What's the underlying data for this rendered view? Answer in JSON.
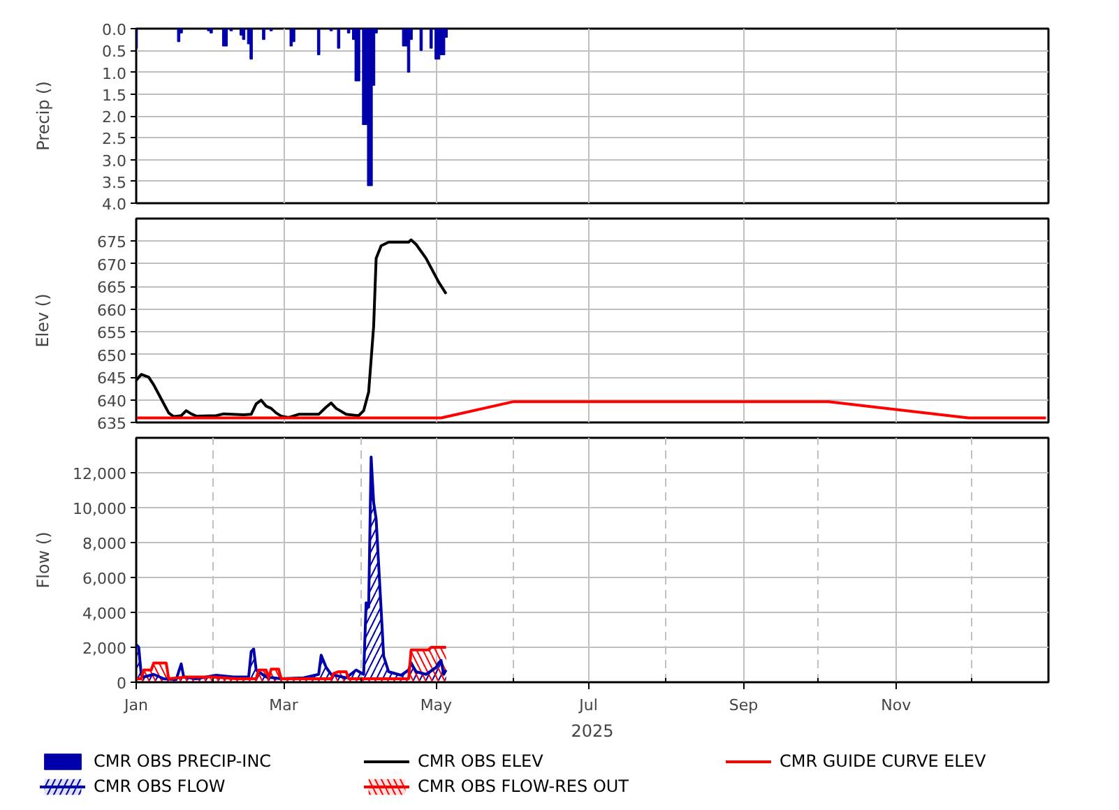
{
  "chart_data": [
    {
      "type": "bar",
      "ylabel": "Precip ()",
      "legend": "bottom",
      "grid": true,
      "tick_labels": "y",
      "xlim": [
        "2025-01-01",
        "2026-01-01"
      ],
      "xticks": [
        "2025-01-01",
        "2025-03-01",
        "2025-05-01",
        "2025-07-01",
        "2025-09-01",
        "2025-11-01"
      ],
      "ylim": [
        4,
        0
      ],
      "yticks": [
        {
          "value": 0,
          "label": "0.0"
        },
        0.5,
        {
          "value": 1,
          "label": "1.0"
        },
        1.5,
        {
          "value": 2,
          "label": "2.0"
        },
        2.5,
        {
          "value": 3,
          "label": "3.0"
        },
        3.5,
        {
          "value": 4,
          "label": "4.0"
        }
      ],
      "x": [
        "2025-01-01",
        "2025-01-18",
        "2025-01-19",
        "2025-01-30",
        "2025-01-31",
        "2025-02-05",
        "2025-02-06",
        "2025-02-08",
        "2025-02-12",
        "2025-02-13",
        "2025-02-15",
        "2025-02-16",
        "2025-02-21",
        "2025-02-24",
        "2025-03-04",
        "2025-03-05",
        "2025-03-15",
        "2025-03-20",
        "2025-03-23",
        "2025-03-27",
        "2025-03-29",
        "2025-03-30",
        "2025-03-31",
        "2025-04-02",
        "2025-04-03",
        "2025-04-04",
        "2025-04-05",
        "2025-04-06",
        "2025-04-07",
        "2025-04-18",
        "2025-04-19",
        "2025-04-20",
        "2025-04-21",
        "2025-04-25",
        "2025-04-29",
        "2025-05-01",
        "2025-05-02",
        "2025-05-03",
        "2025-05-04",
        "2025-05-05"
      ],
      "series": [
        {
          "name": "CMR OBS PRECIP-INC",
          "color": "#0000aa",
          "values": [
            0.45,
            0.3,
            0.1,
            0.05,
            0.1,
            0.4,
            0.4,
            0.05,
            0.15,
            0.25,
            0.35,
            0.7,
            0.25,
            0.05,
            0.4,
            0.3,
            0.6,
            0.05,
            0.45,
            0.1,
            0.25,
            1.2,
            1.2,
            2.2,
            2.2,
            3.6,
            3.6,
            1.3,
            0.1,
            0.4,
            0.4,
            1.0,
            0.25,
            0.5,
            0.45,
            0.7,
            0.7,
            0.6,
            0.6,
            0.2
          ]
        }
      ]
    },
    {
      "type": "line",
      "ylabel": "Elev ()",
      "legend": "bottom",
      "grid": true,
      "tick_labels": "y",
      "xlim": [
        "2025-01-01",
        "2026-01-01"
      ],
      "xticks": [
        "2025-01-01",
        "2025-03-01",
        "2025-05-01",
        "2025-07-01",
        "2025-09-01",
        "2025-11-01"
      ],
      "ylim": [
        635,
        680
      ],
      "yticks": [
        635,
        640,
        645,
        650,
        655,
        660,
        665,
        670,
        675
      ],
      "series": [
        {
          "name": "CMR OBS ELEV",
          "color": "#000000",
          "x": [
            "2025-01-01",
            "2025-01-03",
            "2025-01-06",
            "2025-01-08",
            "2025-01-11",
            "2025-01-14",
            "2025-01-16",
            "2025-01-19",
            "2025-01-21",
            "2025-01-23",
            "2025-01-25",
            "2025-02-02",
            "2025-02-05",
            "2025-02-13",
            "2025-02-16",
            "2025-02-18",
            "2025-02-20",
            "2025-02-22",
            "2025-02-24",
            "2025-02-26",
            "2025-02-28",
            "2025-03-03",
            "2025-03-07",
            "2025-03-15",
            "2025-03-18",
            "2025-03-20",
            "2025-03-22",
            "2025-03-26",
            "2025-03-31",
            "2025-04-02",
            "2025-04-04",
            "2025-04-06",
            "2025-04-07",
            "2025-04-09",
            "2025-04-12",
            "2025-04-20",
            "2025-04-21",
            "2025-04-23",
            "2025-04-27",
            "2025-05-02",
            "2025-05-05"
          ],
          "values": [
            644.3,
            645.6,
            645.0,
            643.3,
            640.2,
            637.1,
            636.3,
            636.5,
            637.6,
            636.9,
            636.4,
            636.5,
            636.9,
            636.7,
            636.8,
            639.1,
            639.9,
            638.6,
            638.1,
            637.1,
            636.4,
            636.1,
            636.8,
            636.8,
            638.4,
            639.3,
            638.1,
            636.8,
            636.5,
            637.6,
            641.7,
            656.2,
            671.2,
            674.0,
            674.8,
            674.8,
            675.3,
            674.3,
            671.2,
            666.0,
            663.4
          ]
        },
        {
          "name": "CMR GUIDE CURVE ELEV",
          "color": "#ff0000",
          "x": [
            "2025-01-01",
            "2025-05-03",
            "2025-06-01",
            "2025-10-05",
            "2025-11-30",
            "2025-12-31"
          ],
          "values": [
            636.0,
            636.0,
            639.6,
            639.6,
            636.0,
            636.0
          ]
        }
      ]
    },
    {
      "type": "area",
      "ylabel": "Flow ()",
      "xlabel": "2025",
      "legend": "bottom",
      "grid": true,
      "xlim": [
        "2025-01-01",
        "2026-01-01"
      ],
      "xticks": [
        {
          "value": "2025-01-01",
          "label": "Jan"
        },
        {
          "value": "2025-02-01",
          "label": null
        },
        {
          "value": "2025-03-01",
          "label": "Mar"
        },
        {
          "value": "2025-04-01",
          "label": null
        },
        {
          "value": "2025-05-01",
          "label": "May"
        },
        {
          "value": "2025-06-01",
          "label": null
        },
        {
          "value": "2025-07-01",
          "label": "Jul"
        },
        {
          "value": "2025-08-01",
          "label": null
        },
        {
          "value": "2025-09-01",
          "label": "Sep"
        },
        {
          "value": "2025-10-01",
          "label": null
        },
        {
          "value": "2025-11-01",
          "label": "Nov"
        },
        {
          "value": "2025-12-01",
          "label": null
        }
      ],
      "ylim": [
        0,
        14000
      ],
      "yticks": [
        0,
        {
          "value": 2000,
          "label": "2,000"
        },
        {
          "value": 4000,
          "label": "4,000"
        },
        {
          "value": 6000,
          "label": "6,000"
        },
        {
          "value": 8000,
          "label": "8,000"
        },
        {
          "value": 10000,
          "label": "10,000"
        },
        {
          "value": 12000,
          "label": "12,000"
        }
      ],
      "series": [
        {
          "name": "CMR OBS FLOW",
          "color": "#0000aa",
          "x": [
            "2025-01-01",
            "2025-01-02",
            "2025-01-03",
            "2025-01-04",
            "2025-01-08",
            "2025-01-12",
            "2025-01-17",
            "2025-01-19",
            "2025-01-20",
            "2025-01-25",
            "2025-02-02",
            "2025-02-09",
            "2025-02-15",
            "2025-02-16",
            "2025-02-17",
            "2025-02-18",
            "2025-02-22",
            "2025-02-28",
            "2025-03-09",
            "2025-03-15",
            "2025-03-16",
            "2025-03-18",
            "2025-03-20",
            "2025-03-26",
            "2025-03-30",
            "2025-04-02",
            "2025-04-03",
            "2025-04-04",
            "2025-04-05",
            "2025-04-06",
            "2025-04-07",
            "2025-04-09",
            "2025-04-10",
            "2025-04-12",
            "2025-04-17",
            "2025-04-20",
            "2025-04-21",
            "2025-04-23",
            "2025-04-27",
            "2025-05-01",
            "2025-05-02",
            "2025-05-03",
            "2025-05-04",
            "2025-05-05"
          ],
          "values": [
            2150,
            2000,
            450,
            300,
            450,
            200,
            150,
            1050,
            300,
            200,
            400,
            300,
            300,
            1750,
            1900,
            700,
            300,
            200,
            250,
            450,
            1550,
            850,
            450,
            250,
            700,
            450,
            4550,
            4300,
            12900,
            10300,
            9350,
            4150,
            1500,
            600,
            400,
            700,
            1100,
            600,
            450,
            850,
            1100,
            1250,
            450,
            700
          ]
        },
        {
          "name": "CMR OBS FLOW-RES OUT",
          "color": "#ff0000",
          "x": [
            "2025-01-01",
            "2025-01-03",
            "2025-01-04",
            "2025-01-07",
            "2025-01-08",
            "2025-01-13",
            "2025-01-14",
            "2025-01-21",
            "2025-01-31",
            "2025-02-10",
            "2025-02-18",
            "2025-02-19",
            "2025-02-22",
            "2025-02-23",
            "2025-02-24",
            "2025-02-27",
            "2025-02-28",
            "2025-03-20",
            "2025-03-21",
            "2025-03-23",
            "2025-03-26",
            "2025-03-27",
            "2025-04-20",
            "2025-04-21",
            "2025-04-28",
            "2025-04-29",
            "2025-05-05"
          ],
          "values": [
            200,
            200,
            700,
            700,
            1100,
            1100,
            200,
            300,
            300,
            200,
            200,
            700,
            700,
            250,
            750,
            750,
            200,
            200,
            500,
            600,
            600,
            200,
            200,
            1850,
            1850,
            2000,
            2000
          ]
        }
      ]
    }
  ]
}
